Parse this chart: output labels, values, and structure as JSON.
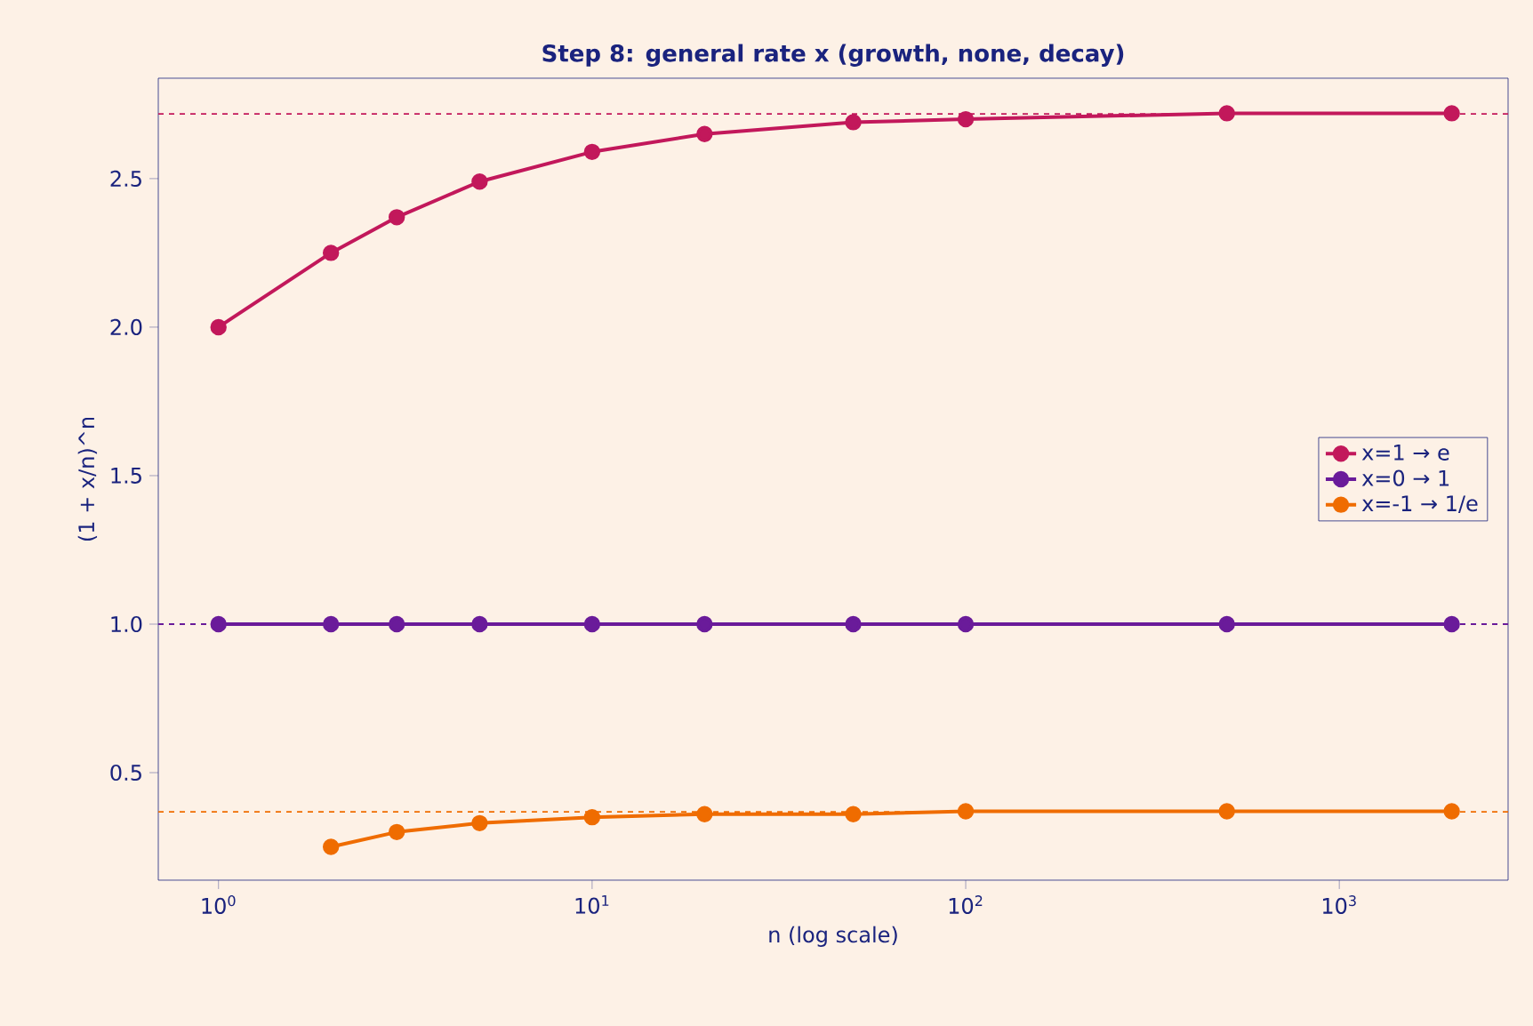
{
  "chart_data": {
    "type": "line",
    "title": "Step 8: general rate x  (growth, none, decay)",
    "xlabel": "n (log scale)",
    "ylabel": "(1 + x/n)^n",
    "log": "x",
    "x": [
      1,
      2,
      3,
      5,
      10,
      20,
      50,
      100,
      500,
      2000
    ],
    "series": [
      {
        "name": "x=1 → e",
        "color": "#c2185b",
        "values": [
          2.0,
          2.25,
          2.37,
          2.49,
          2.59,
          2.65,
          2.69,
          2.7,
          2.72,
          2.72
        ]
      },
      {
        "name": "x=0 → 1",
        "color": "#6a1b9a",
        "values": [
          1.0,
          1.0,
          1.0,
          1.0,
          1.0,
          1.0,
          1.0,
          1.0,
          1.0,
          1.0
        ]
      },
      {
        "name": "x=-1 → 1/e",
        "color": "#ef6c00",
        "values": [
          null,
          0.25,
          0.3,
          0.33,
          0.35,
          0.36,
          0.36,
          0.37,
          0.37,
          0.37
        ]
      }
    ],
    "ref_lines": [
      {
        "axis": "y",
        "value": 2.718,
        "color": "#c2185b",
        "line_style": "dashed"
      },
      {
        "axis": "y",
        "value": 1.0,
        "color": "#6a1b9a",
        "line_style": "dashed"
      },
      {
        "axis": "y",
        "value": 0.368,
        "color": "#ef6c00",
        "line_style": "dashed"
      }
    ],
    "xlim": [
      0.69,
      2830
    ],
    "ylim": [
      0.138,
      2.838
    ],
    "xticks": [
      {
        "value": 1,
        "label": "10$^{0}$"
      },
      {
        "value": 10,
        "label": "10$^{1}$"
      },
      {
        "value": 100,
        "label": "10$^{2}$"
      },
      {
        "value": 1000,
        "label": "10$^{3}$"
      }
    ],
    "yticks": [
      0.5,
      {
        "value": 1.0,
        "label": "1.0"
      },
      1.5,
      {
        "value": 2.0,
        "label": "2.0"
      },
      2.5
    ],
    "grid": false,
    "legend": "right",
    "marker": "circle",
    "line_style": "solid"
  }
}
